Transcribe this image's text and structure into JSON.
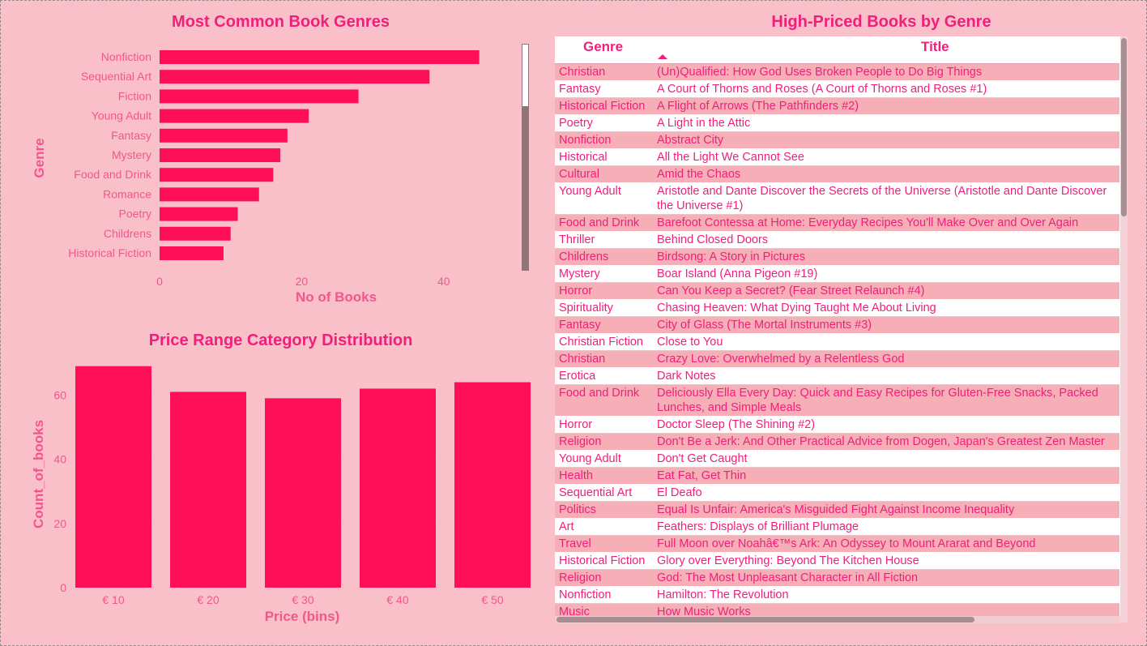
{
  "chart_data": [
    {
      "type": "bar",
      "orientation": "horizontal",
      "title": "Most Common Book Genres",
      "xlabel": "No of Books",
      "ylabel": "Genre",
      "categories": [
        "Nonfiction",
        "Sequential Art",
        "Fiction",
        "Young Adult",
        "Fantasy",
        "Mystery",
        "Food and Drink",
        "Romance",
        "Poetry",
        "Childrens",
        "Historical Fiction"
      ],
      "values": [
        45,
        38,
        28,
        21,
        18,
        17,
        16,
        14,
        11,
        10,
        9
      ],
      "xticks": [
        "0",
        "20",
        "40"
      ],
      "xlim": [
        0,
        50
      ],
      "color": "#ff0f5a"
    },
    {
      "type": "bar",
      "title": "Price Range Category Distribution",
      "xlabel": "Price (bins)",
      "ylabel": "Count_of_books",
      "categories": [
        "€ 10",
        "€ 20",
        "€ 30",
        "€ 40",
        "€ 50"
      ],
      "values": [
        69,
        61,
        59,
        62,
        64
      ],
      "yticks": [
        "0",
        "20",
        "40",
        "60"
      ],
      "ylim": [
        0,
        69
      ],
      "color": "#ff0f5a"
    }
  ],
  "table": {
    "title": "High-Priced Books by Genre",
    "columns": [
      "Genre",
      "Title"
    ],
    "sort": "Title ascending",
    "rows": [
      [
        "Christian",
        "(Un)Qualified: How God Uses Broken People to Do Big Things"
      ],
      [
        "Fantasy",
        "A Court of Thorns and Roses (A Court of Thorns and Roses #1)"
      ],
      [
        "Historical Fiction",
        "A Flight of Arrows (The Pathfinders #2)"
      ],
      [
        "Poetry",
        "A Light in the Attic"
      ],
      [
        "Nonfiction",
        "Abstract City"
      ],
      [
        "Historical",
        "All the Light We Cannot See"
      ],
      [
        "Cultural",
        "Amid the Chaos"
      ],
      [
        "Young Adult",
        "Aristotle and Dante Discover the Secrets of the Universe (Aristotle and Dante Discover the Universe #1)"
      ],
      [
        "Food and Drink",
        "Barefoot Contessa at Home: Everyday Recipes You'll Make Over and Over Again"
      ],
      [
        "Thriller",
        "Behind Closed Doors"
      ],
      [
        "Childrens",
        "Birdsong: A Story in Pictures"
      ],
      [
        "Mystery",
        "Boar Island (Anna Pigeon #19)"
      ],
      [
        "Horror",
        "Can You Keep a Secret? (Fear Street Relaunch #4)"
      ],
      [
        "Spirituality",
        "Chasing Heaven: What Dying Taught Me About Living"
      ],
      [
        "Fantasy",
        "City of Glass (The Mortal Instruments #3)"
      ],
      [
        "Christian Fiction",
        "Close to You"
      ],
      [
        "Christian",
        "Crazy Love: Overwhelmed by a Relentless God"
      ],
      [
        "Erotica",
        "Dark Notes"
      ],
      [
        "Food and Drink",
        "Deliciously Ella Every Day: Quick and Easy Recipes for Gluten-Free Snacks, Packed Lunches, and Simple Meals"
      ],
      [
        "Horror",
        "Doctor Sleep (The Shining #2)"
      ],
      [
        "Religion",
        "Don't Be a Jerk: And Other Practical Advice from Dogen, Japan's Greatest Zen Master"
      ],
      [
        "Young Adult",
        "Don't Get Caught"
      ],
      [
        "Health",
        "Eat Fat, Get Thin"
      ],
      [
        "Sequential Art",
        "El Deafo"
      ],
      [
        "Politics",
        "Equal Is Unfair: America's Misguided Fight Against Income Inequality"
      ],
      [
        "Art",
        "Feathers: Displays of Brilliant Plumage"
      ],
      [
        "Travel",
        "Full Moon over Noahâ€™s Ark: An Odyssey to Mount Ararat and Beyond"
      ],
      [
        "Historical Fiction",
        "Glory over Everything: Beyond The Kitchen House"
      ],
      [
        "Religion",
        "God: The Most Unpleasant Character in All Fiction"
      ],
      [
        "Nonfiction",
        "Hamilton: The Revolution"
      ],
      [
        "Music",
        "How Music Works"
      ]
    ]
  }
}
